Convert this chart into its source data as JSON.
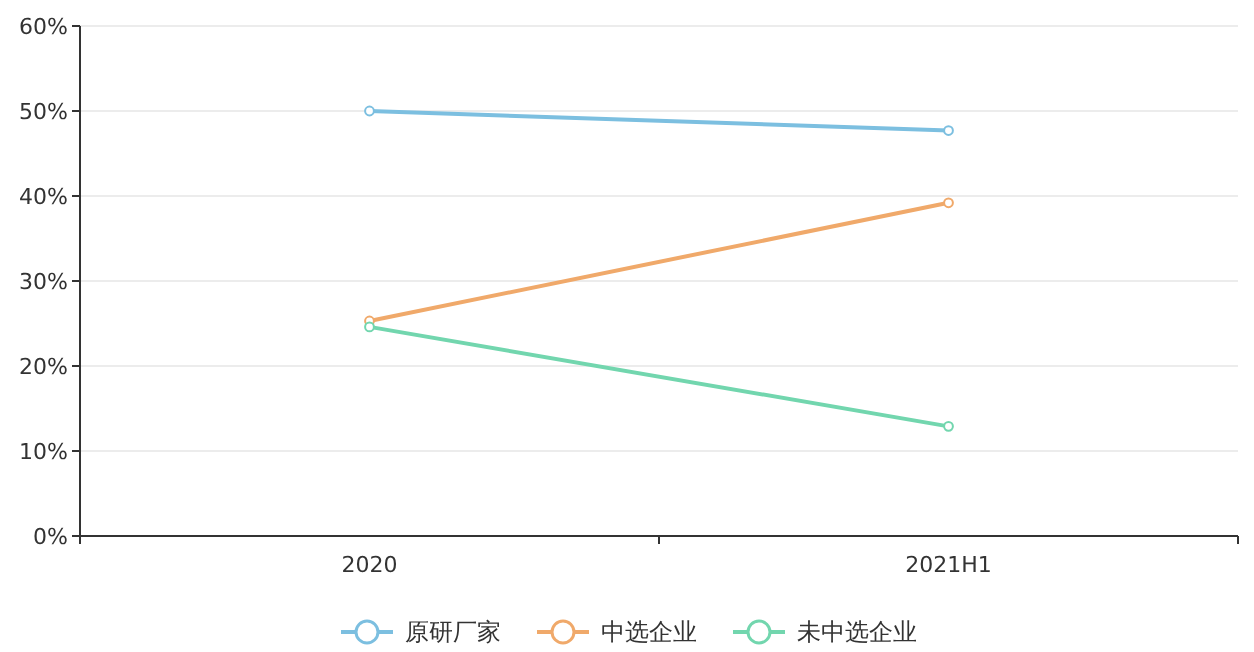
{
  "chart_data": {
    "type": "line",
    "categories": [
      "2020",
      "2021H1"
    ],
    "series": [
      {
        "name": "原研厂家",
        "color": "#7cbfe0",
        "values": [
          50,
          47.7
        ]
      },
      {
        "name": "中选企业",
        "color": "#f0a96a",
        "values": [
          25.3,
          39.2
        ]
      },
      {
        "name": "未中选企业",
        "color": "#72d6ae",
        "values": [
          24.6,
          12.9
        ]
      }
    ],
    "ylim": [
      0,
      60
    ],
    "yticks": [
      {
        "value": 0,
        "label": "0%"
      },
      {
        "value": 10,
        "label": "10%"
      },
      {
        "value": 20,
        "label": "20%"
      },
      {
        "value": 30,
        "label": "30%"
      },
      {
        "value": 40,
        "label": "40%"
      },
      {
        "value": 50,
        "label": "50%"
      },
      {
        "value": 60,
        "label": "60%"
      }
    ],
    "grid": "y",
    "legend": "bottom",
    "marker": "circle",
    "line_style": "solid"
  }
}
